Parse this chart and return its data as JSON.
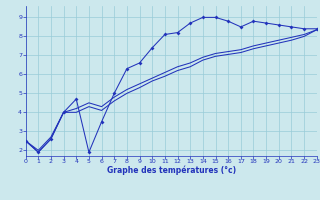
{
  "xlabel": "Graphe des températures (°c)",
  "bg_color": "#cce8ed",
  "line_color": "#2233bb",
  "grid_color": "#99ccd8",
  "xlim": [
    0,
    23
  ],
  "ylim": [
    1.7,
    9.6
  ],
  "yticks": [
    2,
    3,
    4,
    5,
    6,
    7,
    8,
    9
  ],
  "xticks": [
    0,
    1,
    2,
    3,
    4,
    5,
    6,
    7,
    8,
    9,
    10,
    11,
    12,
    13,
    14,
    15,
    16,
    17,
    18,
    19,
    20,
    21,
    22,
    23
  ],
  "line1_x": [
    0,
    1,
    2,
    3,
    4,
    5,
    6,
    7,
    8,
    9,
    10,
    11,
    12,
    13,
    14,
    15,
    16,
    17,
    18,
    19,
    20,
    21,
    22,
    23
  ],
  "line1_y": [
    2.5,
    1.9,
    2.6,
    4.0,
    4.7,
    1.9,
    3.5,
    5.0,
    6.3,
    6.6,
    7.4,
    8.1,
    8.2,
    8.7,
    9.0,
    9.0,
    8.8,
    8.5,
    8.8,
    8.7,
    8.6,
    8.5,
    8.4,
    8.4
  ],
  "line2_x": [
    0,
    1,
    2,
    3,
    4,
    5,
    6,
    7,
    8,
    9,
    10,
    11,
    12,
    13,
    14,
    15,
    16,
    17,
    18,
    19,
    20,
    21,
    22,
    23
  ],
  "line2_y": [
    2.5,
    1.9,
    2.6,
    4.0,
    4.2,
    4.5,
    4.3,
    4.8,
    5.2,
    5.5,
    5.8,
    6.1,
    6.4,
    6.6,
    6.9,
    7.1,
    7.2,
    7.3,
    7.5,
    7.65,
    7.8,
    7.95,
    8.1,
    8.35
  ],
  "line3_x": [
    0,
    1,
    2,
    3,
    4,
    5,
    6,
    7,
    8,
    9,
    10,
    11,
    12,
    13,
    14,
    15,
    16,
    17,
    18,
    19,
    20,
    21,
    22,
    23
  ],
  "line3_y": [
    2.5,
    2.0,
    2.7,
    4.0,
    4.0,
    4.3,
    4.1,
    4.6,
    5.0,
    5.3,
    5.65,
    5.9,
    6.2,
    6.4,
    6.75,
    6.95,
    7.05,
    7.15,
    7.35,
    7.5,
    7.65,
    7.8,
    8.0,
    8.35
  ]
}
